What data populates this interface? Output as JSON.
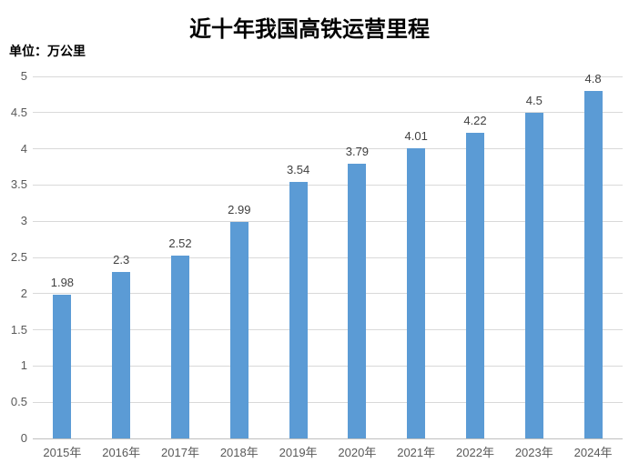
{
  "chart_data": {
    "type": "bar",
    "title": "近十年我国高铁运营里程",
    "unit_label": "单位：万公里",
    "categories": [
      "2015年",
      "2016年",
      "2017年",
      "2018年",
      "2019年",
      "2020年",
      "2021年",
      "2022年",
      "2023年",
      "2024年"
    ],
    "values": [
      1.98,
      2.3,
      2.52,
      2.99,
      3.54,
      3.79,
      4.01,
      4.22,
      4.5,
      4.8
    ],
    "value_labels": [
      "1.98",
      "2.3",
      "2.52",
      "2.99",
      "3.54",
      "3.79",
      "4.01",
      "4.22",
      "4.5",
      "4.8"
    ],
    "xlabel": "",
    "ylabel": "",
    "ylim": [
      0,
      5
    ],
    "ytick_step": 0.5,
    "yticks": [
      "0",
      "0.5",
      "1",
      "1.5",
      "2",
      "2.5",
      "3",
      "3.5",
      "4",
      "4.5",
      "5"
    ],
    "grid": "horizontal",
    "legend": "none",
    "colors": {
      "bar": "#5B9BD5",
      "gridline": "#D9D9D9",
      "axis_line": "#BFBFBF",
      "tick_label": "#595959",
      "data_label": "#404040",
      "title": "#000000",
      "background": "#FFFFFF"
    }
  }
}
